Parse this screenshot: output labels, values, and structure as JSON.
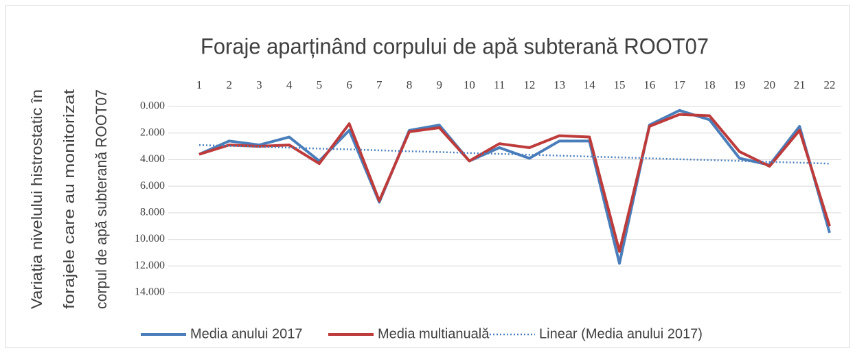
{
  "chart_data": {
    "type": "line",
    "title": "Foraje aparținând corpului de apă subterană ROOT07",
    "ylabel": [
      "Variația nivelului histrostatic în",
      "forajele care au monitorizat",
      "corpul de apă subterană ROOT07"
    ],
    "categories": [
      "1",
      "2",
      "3",
      "4",
      "5",
      "6",
      "7",
      "8",
      "9",
      "10",
      "11",
      "12",
      "13",
      "14",
      "15",
      "16",
      "17",
      "18",
      "19",
      "20",
      "21",
      "22"
    ],
    "series": [
      {
        "name": "Media anului 2017",
        "color": "#4a7ebb",
        "style": "solid",
        "values": [
          3.6,
          2.6,
          2.9,
          2.3,
          4.1,
          1.8,
          7.2,
          1.8,
          1.4,
          4.1,
          3.1,
          3.9,
          2.6,
          2.6,
          11.8,
          1.4,
          0.3,
          1.0,
          3.9,
          4.4,
          1.5,
          9.5
        ]
      },
      {
        "name": "Media multianuală",
        "color": "#be3b3b",
        "style": "solid",
        "values": [
          3.6,
          2.9,
          3.0,
          2.9,
          4.3,
          1.3,
          7.1,
          1.9,
          1.6,
          4.1,
          2.8,
          3.1,
          2.2,
          2.3,
          10.9,
          1.5,
          0.6,
          0.7,
          3.4,
          4.5,
          1.8,
          9.0
        ]
      },
      {
        "name": "Linear (Media anului 2017)",
        "color": "#4a7ebb",
        "style": "dotted",
        "values": [
          2.9,
          2.97,
          3.03,
          3.1,
          3.17,
          3.23,
          3.3,
          3.37,
          3.43,
          3.5,
          3.57,
          3.63,
          3.7,
          3.77,
          3.83,
          3.9,
          3.97,
          4.03,
          4.1,
          4.17,
          4.23,
          4.3
        ]
      }
    ],
    "ylim": [
      0,
      14
    ],
    "y_inverted": true,
    "yticks": [
      {
        "value": 0,
        "label": "0.000"
      },
      {
        "value": 2,
        "label": "2.000"
      },
      {
        "value": 4,
        "label": "4.000"
      },
      {
        "value": 6,
        "label": "6.000"
      },
      {
        "value": 8,
        "label": "8.000"
      },
      {
        "value": 10,
        "label": "10.000"
      },
      {
        "value": 12,
        "label": "12.000"
      },
      {
        "value": 14,
        "label": "14.000"
      }
    ],
    "grid": true,
    "legend": "bottom"
  }
}
